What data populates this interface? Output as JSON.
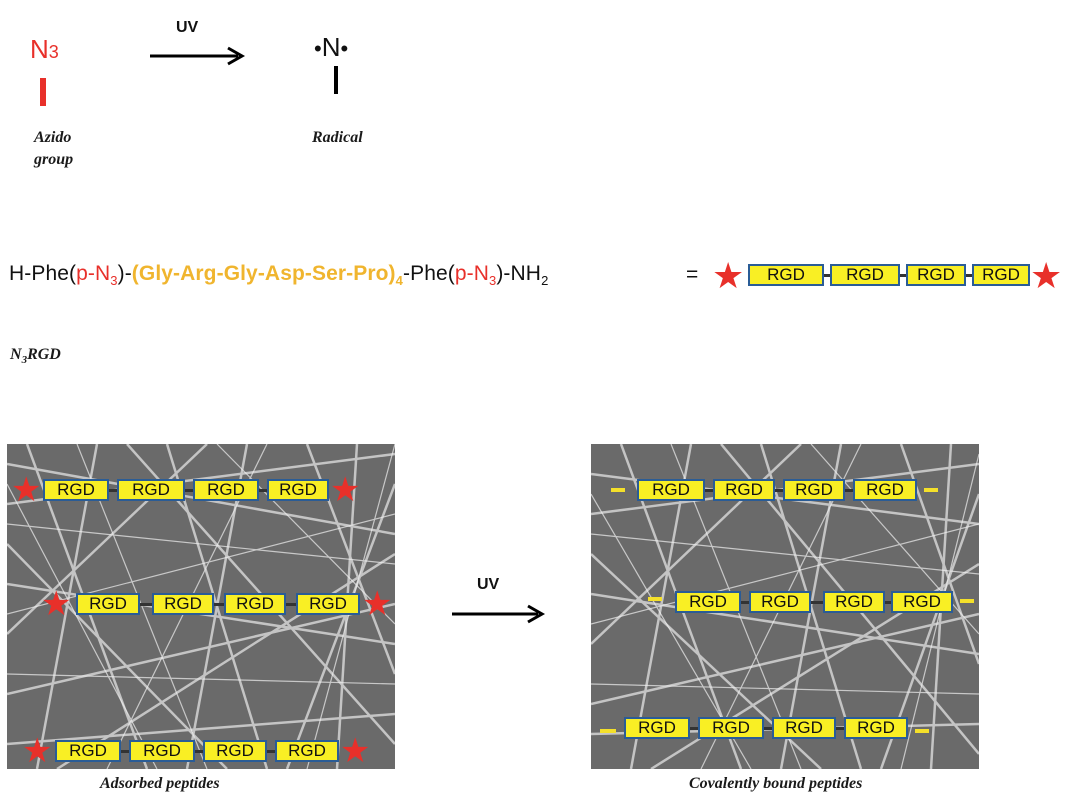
{
  "top": {
    "azido_symbol": "N",
    "azido_subscript": "3",
    "uv_label": "UV",
    "radical_symbol": "N",
    "azido_caption_line1": "Azido",
    "azido_caption_line2": "group",
    "radical_caption": "Radical"
  },
  "equation": {
    "part1": "H-Phe(",
    "part2": "p-N",
    "part2_sub": "3",
    "part3": ")-",
    "part4": "(Gly-Arg-Gly-Asp-Ser-Pro)",
    "part4_sub": "4",
    "part5": "-Phe(",
    "part6": "p-N",
    "part6_sub": "3",
    "part7": ")-NH",
    "part7_sub": "2",
    "equals": "=",
    "name_main": "N",
    "name_sub": "3",
    "name_rest": "RGD"
  },
  "rgd_label": "RGD",
  "bottom": {
    "uv_label": "UV",
    "left_caption": "Adsorbed peptides",
    "right_caption": "Covalently bound peptides"
  },
  "colors": {
    "star": "#e8302a",
    "rgd_fill": "#f9ef24",
    "rgd_border": "#2a5c96",
    "gold_text": "#f0b52e"
  }
}
